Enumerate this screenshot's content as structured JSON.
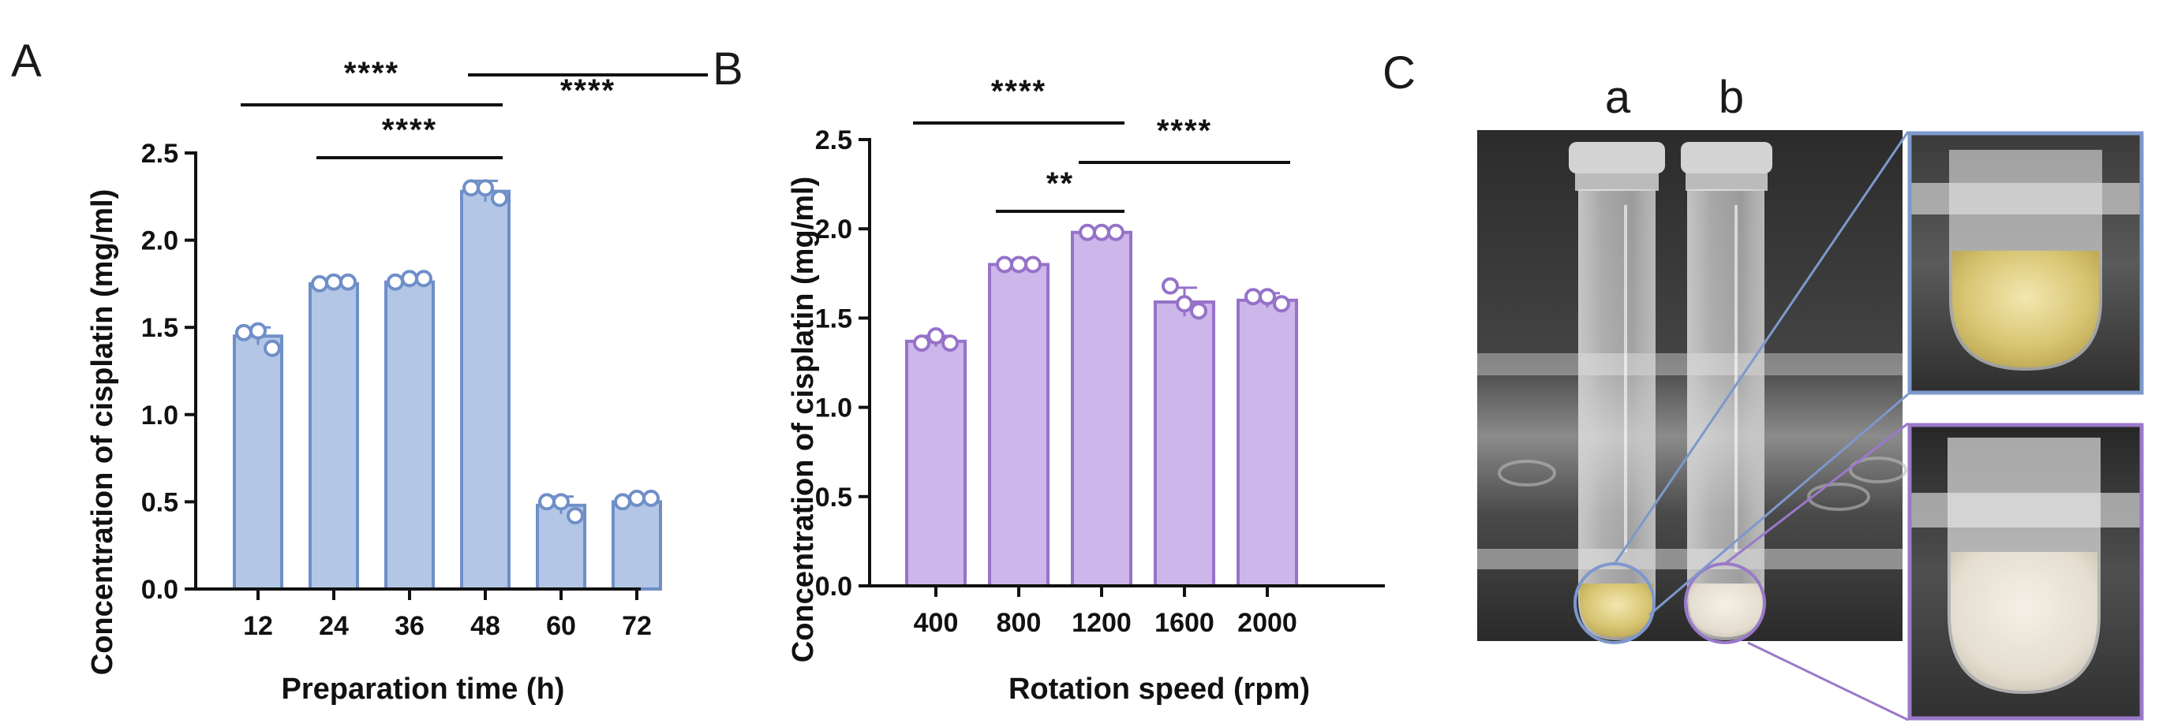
{
  "panels": {
    "a": "A",
    "b": "B",
    "c": "C"
  },
  "chart_data": [
    {
      "type": "bar",
      "panel": "A",
      "categories": [
        "12",
        "24",
        "36",
        "48",
        "60",
        "72"
      ],
      "values": [
        1.45,
        1.75,
        1.76,
        2.28,
        0.48,
        0.5
      ],
      "errors": [
        0.05,
        0.02,
        0.03,
        0.06,
        0.05,
        0.03
      ],
      "points": [
        [
          1.47,
          1.48,
          1.38
        ],
        [
          1.75,
          1.76,
          1.76
        ],
        [
          1.76,
          1.78,
          1.78
        ],
        [
          2.3,
          2.3,
          2.24
        ],
        [
          0.5,
          0.5,
          0.42
        ],
        [
          0.5,
          0.52,
          0.52
        ]
      ],
      "xlabel": "Preparation time (h)",
      "ylabel": "Concentration of cisplatin (mg/ml)",
      "ylim": [
        0,
        2.5
      ],
      "yticks": [
        "0.0",
        "0.5",
        "1.0",
        "1.5",
        "2.0",
        "2.5"
      ],
      "color": "#b3c6e6",
      "edge_color": "#6f8fc8",
      "significance": [
        {
          "from": 0,
          "to": 3,
          "label": "****"
        },
        {
          "from": 1,
          "to": 3,
          "label": "****"
        },
        {
          "from": 3,
          "to": 5,
          "label": "****"
        }
      ]
    },
    {
      "type": "bar",
      "panel": "B",
      "categories": [
        "400",
        "800",
        "1200",
        "1600",
        "2000"
      ],
      "values": [
        1.37,
        1.8,
        1.98,
        1.59,
        1.6
      ],
      "errors": [
        0.03,
        0.01,
        0.01,
        0.08,
        0.04
      ],
      "points": [
        [
          1.36,
          1.4,
          1.36
        ],
        [
          1.8,
          1.8,
          1.8
        ],
        [
          1.98,
          1.98,
          1.98
        ],
        [
          1.68,
          1.58,
          1.54
        ],
        [
          1.62,
          1.62,
          1.58
        ]
      ],
      "xlabel": "Rotation speed (rpm)",
      "ylabel": "Concentration of cisplatin (mg/ml)",
      "ylim": [
        0,
        2.5
      ],
      "yticks": [
        "0.0",
        "0.5",
        "1.0",
        "1.5",
        "2.0",
        "2.5"
      ],
      "color": "#cdb6e9",
      "edge_color": "#9672c8",
      "significance": [
        {
          "from": 0,
          "to": 2,
          "label": "****"
        },
        {
          "from": 1,
          "to": 2,
          "label": "**"
        },
        {
          "from": 2,
          "to": 4,
          "label": "****"
        }
      ]
    }
  ],
  "photo": {
    "tube_labels": [
      "a",
      "b"
    ],
    "zoom_top_color": "#7d98cc",
    "zoom_bottom_color": "#9a79c9"
  }
}
